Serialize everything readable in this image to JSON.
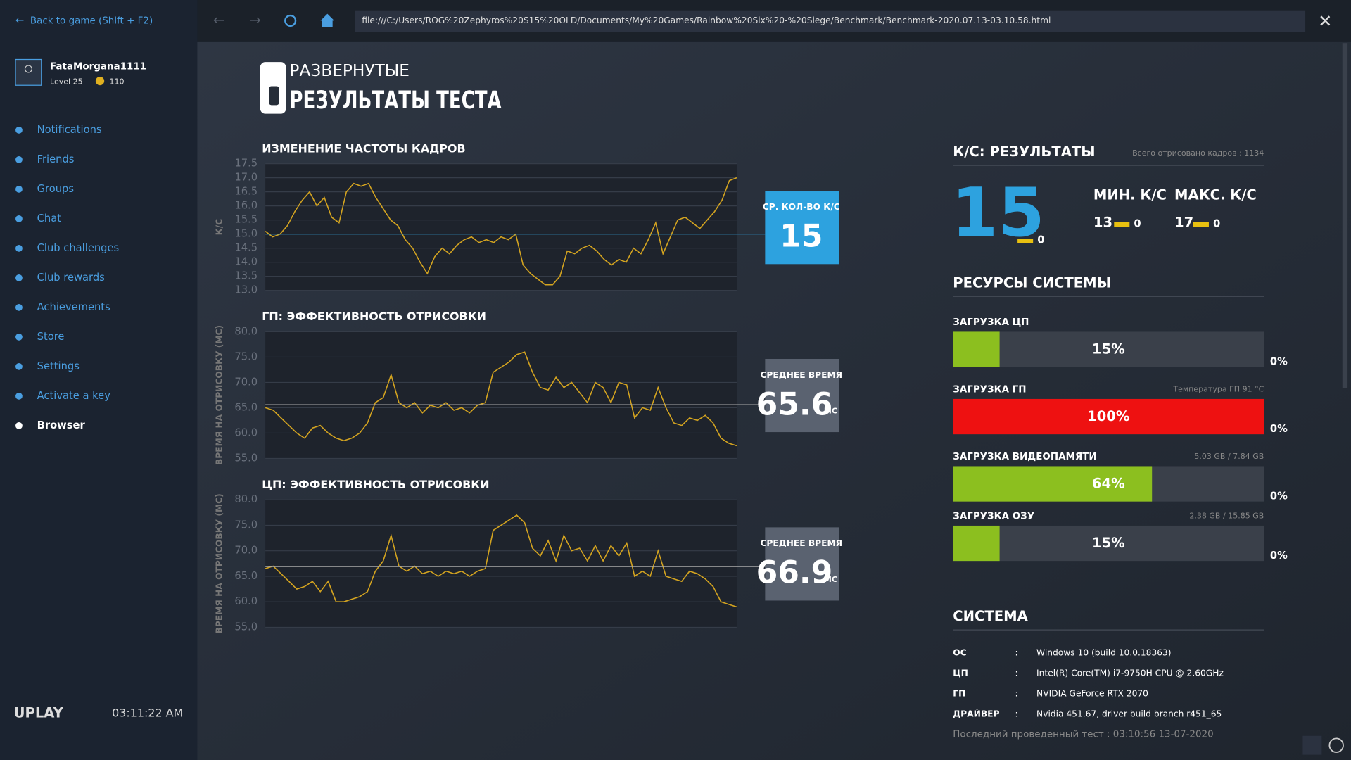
{
  "sidebar": {
    "back": "Back to game (Shift + F2)",
    "username": "FataMorgana1111",
    "level": "Level 25",
    "coins": "110",
    "menu": [
      "Notifications",
      "Friends",
      "Groups",
      "Chat",
      "Club challenges",
      "Club rewards",
      "Achievements",
      "Store",
      "Settings",
      "Activate a key",
      "Browser"
    ],
    "logo": "UPLAY",
    "time": "03:11:22 AM"
  },
  "browser": {
    "url": "file:///C:/Users/ROG%20Zephyros%20S15%20OLD/Documents/My%20Games/Rainbow%20Six%20-%20Siege/Benchmark/Benchmark-2020.07.13-03.10.58.html"
  },
  "header": {
    "line1": "РАЗВЕРНУТЫЕ",
    "line2": "РЕЗУЛЬТАТЫ ТЕСТА"
  },
  "chart_data": [
    {
      "type": "line",
      "title": "ИЗМЕНЕНИЕ ЧАСТОТЫ КАДРОВ",
      "ylabel": "К/С",
      "color": "#d4a420",
      "values": [
        15.1,
        14.9,
        15.0,
        15.3,
        15.8,
        16.2,
        16.5,
        16.0,
        16.3,
        15.6,
        15.4,
        16.5,
        16.8,
        16.7,
        16.8,
        16.3,
        15.9,
        15.5,
        15.3,
        14.8,
        14.5,
        14.0,
        13.6,
        14.2,
        14.5,
        14.3,
        14.6,
        14.8,
        14.9,
        14.7,
        14.8,
        14.7,
        14.9,
        14.8,
        15.0,
        13.9,
        13.6,
        13.4,
        13.2,
        13.2,
        13.5,
        14.4,
        14.3,
        14.5,
        14.6,
        14.4,
        14.1,
        13.9,
        14.1,
        14.0,
        14.5,
        14.3,
        14.8,
        15.4,
        14.3,
        14.9,
        15.5,
        15.6,
        15.4,
        15.2,
        15.5,
        15.8,
        16.2,
        16.9,
        17.0
      ],
      "ylim": [
        13,
        17.5
      ],
      "yticks": [
        {
          "value": 13,
          "label": "13.0"
        },
        13.5,
        {
          "value": 14,
          "label": "14.0"
        },
        14.5,
        {
          "value": 15,
          "label": "15.0"
        },
        15.5,
        {
          "value": 16,
          "label": "16.0"
        },
        16.5,
        {
          "value": 17,
          "label": "17.0"
        },
        17.5
      ],
      "grid": true,
      "average": 15,
      "average_label": "СР. КОЛ-ВО К/С",
      "average_color": "#2da2df"
    },
    {
      "type": "line",
      "title": "ГП: ЭФФЕКТИВНОСТЬ ОТРИСОВКИ",
      "ylabel": "ВРЕМЯ НА ОТРИСОВКУ (МС)",
      "color": "#d4a420",
      "values": [
        65,
        64.5,
        63,
        61.5,
        60,
        59,
        61,
        61.5,
        60,
        59,
        58.5,
        59,
        60,
        62,
        66,
        67,
        71.5,
        66,
        65,
        66,
        64,
        65.5,
        65,
        66,
        64.5,
        65,
        64,
        65.5,
        66,
        72,
        73,
        74,
        75.5,
        76,
        72,
        69,
        68.5,
        71,
        69,
        70,
        68,
        66,
        70,
        69,
        66,
        70,
        69.5,
        63,
        65,
        64.5,
        69,
        65,
        62,
        61.5,
        63,
        62.5,
        63.5,
        62,
        59,
        58,
        57.5
      ],
      "ylim": [
        55,
        80
      ],
      "yticks": [
        {
          "value": 55,
          "label": "55.0"
        },
        {
          "value": 60,
          "label": "60.0"
        },
        {
          "value": 65,
          "label": "65.0"
        },
        {
          "value": 70,
          "label": "70.0"
        },
        {
          "value": 75,
          "label": "75.0"
        },
        {
          "value": 80,
          "label": "80.0"
        }
      ],
      "grid": true,
      "average": 65.6,
      "average_label": "СРЕДНЕЕ ВРЕМЯ",
      "average_unit": "МС",
      "average_color": "#5a6270"
    },
    {
      "type": "line",
      "title": "ЦП: ЭФФЕКТИВНОСТЬ ОТРИСОВКИ",
      "ylabel": "ВРЕМЯ НА ОТРИСОВКУ (МС)",
      "color": "#d4a420",
      "values": [
        66.5,
        67,
        65.5,
        64,
        62.5,
        63,
        64,
        62,
        64,
        60,
        60,
        60.5,
        61,
        62,
        66,
        68,
        73,
        67,
        66,
        67,
        65.5,
        66,
        65,
        66,
        65.5,
        66,
        65,
        66,
        66.5,
        74,
        75,
        76,
        77,
        75.5,
        70.5,
        69,
        72,
        68,
        73,
        70,
        70.5,
        68,
        71,
        68,
        71,
        69,
        71.5,
        65,
        66,
        65,
        70,
        65,
        64.5,
        64,
        66,
        65.5,
        64.5,
        63,
        60,
        59.5,
        59
      ],
      "ylim": [
        55,
        80
      ],
      "yticks": [
        {
          "value": 55,
          "label": "55.0"
        },
        {
          "value": 60,
          "label": "60.0"
        },
        {
          "value": 65,
          "label": "65.0"
        },
        {
          "value": 70,
          "label": "70.0"
        },
        {
          "value": 75,
          "label": "75.0"
        },
        {
          "value": 80,
          "label": "80.0"
        }
      ],
      "grid": true,
      "average": 66.9,
      "average_label": "СРЕДНЕЕ ВРЕМЯ",
      "average_unit": "МС",
      "average_color": "#5a6270"
    }
  ],
  "fps": {
    "title": "К/С: РЕЗУЛЬТАТЫ",
    "total": "Всего отрисовано кадров : 1134",
    "avg": 15,
    "avg_delta": 0,
    "min_label": "МИН. К/С",
    "min": 13,
    "min_delta": 0,
    "max_label": "МАКС. К/С",
    "max": 17,
    "max_delta": 0
  },
  "resources": {
    "title": "РЕСУРСЫ СИСТЕМЫ",
    "xlim": [
      0,
      100
    ],
    "items": [
      {
        "label": "ЗАГРУЗКА ЦП",
        "value": 15,
        "value_label": "15%",
        "delta_label": "0%",
        "color": "#8cbf1f"
      },
      {
        "label": "ЗАГРУЗКА ГП",
        "info": "Температура ГП 91 °C",
        "value": 100,
        "value_label": "100%",
        "delta_label": "0%",
        "color": "#ee1111"
      },
      {
        "label": "ЗАГРУЗКА ВИДЕОПАМЯТИ",
        "info": "5.03 GB / 7.84 GB",
        "value": 64,
        "value_label": "64%",
        "delta_label": "0%",
        "color": "#8cbf1f"
      },
      {
        "label": "ЗАГРУЗКА ОЗУ",
        "info": "2.38 GB / 15.85 GB",
        "value": 15,
        "value_label": "15%",
        "delta_label": "0%",
        "color": "#8cbf1f"
      }
    ]
  },
  "system": {
    "title": "СИСТЕМА",
    "separator": ":",
    "rows": [
      [
        "ОС",
        "Windows 10 (build 10.0.18363)"
      ],
      [
        "ЦП",
        "Intel(R) Core(TM) i7-9750H CPU @ 2.60GHz"
      ],
      [
        "ГП",
        "NVIDIA GeForce RTX 2070"
      ],
      [
        "ДРАЙВЕР",
        "Nvidia 451.67, driver build branch r451_65"
      ]
    ],
    "last_test": "Последний проведенный тест : 03:10:56 13-07-2020"
  }
}
